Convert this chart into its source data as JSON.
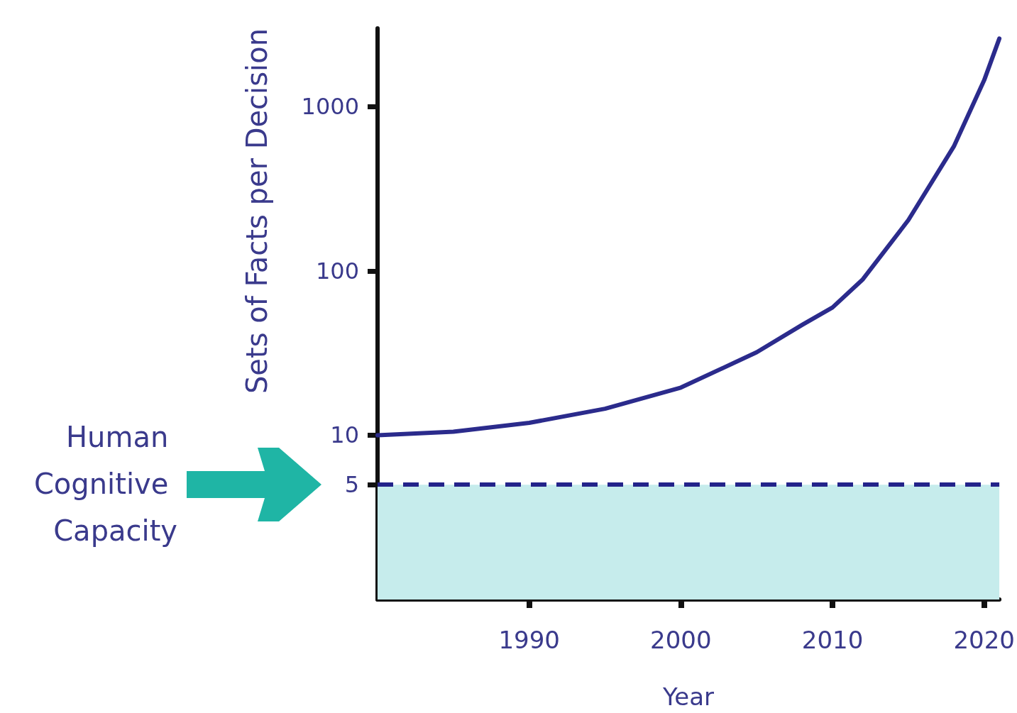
{
  "chart_data": {
    "type": "line",
    "xlabel": "Year",
    "ylabel": "Sets of Facts per Decision",
    "x": [
      1980,
      1985,
      1990,
      1995,
      2000,
      2005,
      2008,
      2010,
      2012,
      2015,
      2018,
      2020,
      2021
    ],
    "series": [
      {
        "color": "#2b2b8c",
        "values": [
          10,
          10.5,
          11.9,
          14.5,
          19.5,
          32,
          47,
          60,
          89,
          204,
          573,
          1450,
          2600
        ]
      }
    ],
    "xlim": [
      1980,
      2021
    ],
    "xticks": [
      1990,
      2000,
      2010,
      2020
    ],
    "ylim": [
      1,
      3000
    ],
    "yticks": [
      5,
      10,
      100,
      1000
    ],
    "log": true,
    "grid": false,
    "marker": "none",
    "line_style": "solid",
    "ref_lines": [
      {
        "axis": "y",
        "value": 5,
        "label": "Human Cognitive Capacity",
        "color": "#23238a",
        "line_style": "dashed"
      }
    ],
    "bands": [
      {
        "axis": "y",
        "from": 1,
        "to": 5,
        "color": "#c6ecec"
      }
    ]
  }
}
